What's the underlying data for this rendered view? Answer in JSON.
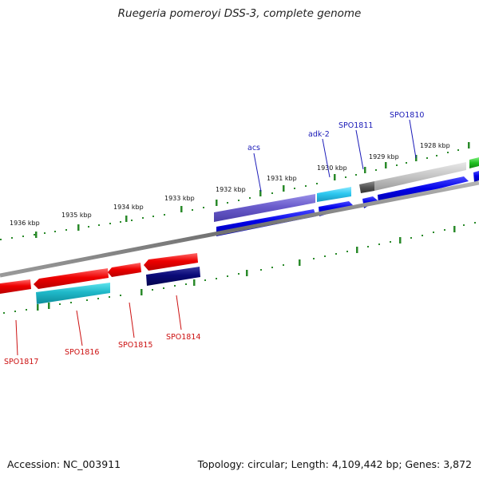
{
  "title": "Ruegeria pomeroyi DSS-3, complete genome",
  "footer": {
    "accession": "Accession: NC_003911",
    "summary": "Topology: circular; Length: 4,109,442 bp; Genes: 3,872"
  },
  "ticks": [
    "1936 kbp",
    "1935 kbp",
    "1934 kbp",
    "1933 kbp",
    "1932 kbp",
    "1931 kbp",
    "1930 kbp",
    "1929 kbp",
    "1928 kbp"
  ],
  "genes_top": [
    "acs",
    "adk-2",
    "SPO1811",
    "SPO1810"
  ],
  "genes_bottom": [
    "SPO1817",
    "SPO1816",
    "SPO1815",
    "SPO1814"
  ],
  "colors": {
    "forward_label": "#1a1ab8",
    "reverse_label": "#cc1111",
    "tick": "#2a8a2a",
    "backbone": "#808080"
  }
}
